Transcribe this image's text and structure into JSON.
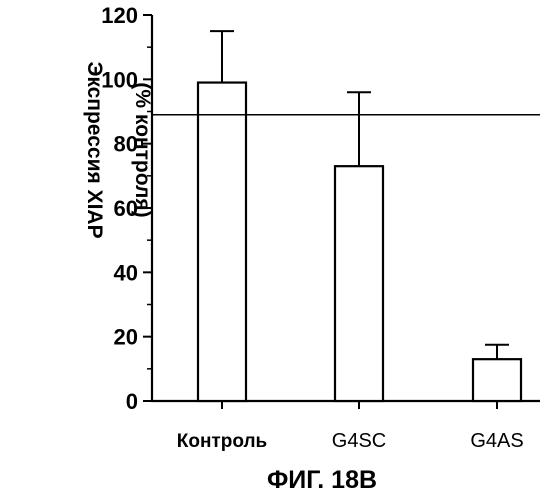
{
  "chart_data": {
    "type": "bar",
    "categories": [
      "Контроль",
      "G4SC",
      "G4AS"
    ],
    "values": [
      99,
      73,
      13
    ],
    "errors": [
      16,
      23,
      4.5
    ],
    "ylim": [
      0,
      120
    ],
    "yticks": [
      0,
      20,
      40,
      60,
      80,
      100,
      120
    ],
    "reference_line": 89,
    "ylabel_line1": "Экспрессия XIAP",
    "ylabel_line2": "(% контроля)",
    "caption": "ФИГ. 18В",
    "xlabel": "",
    "grid": false,
    "legend": "none"
  }
}
